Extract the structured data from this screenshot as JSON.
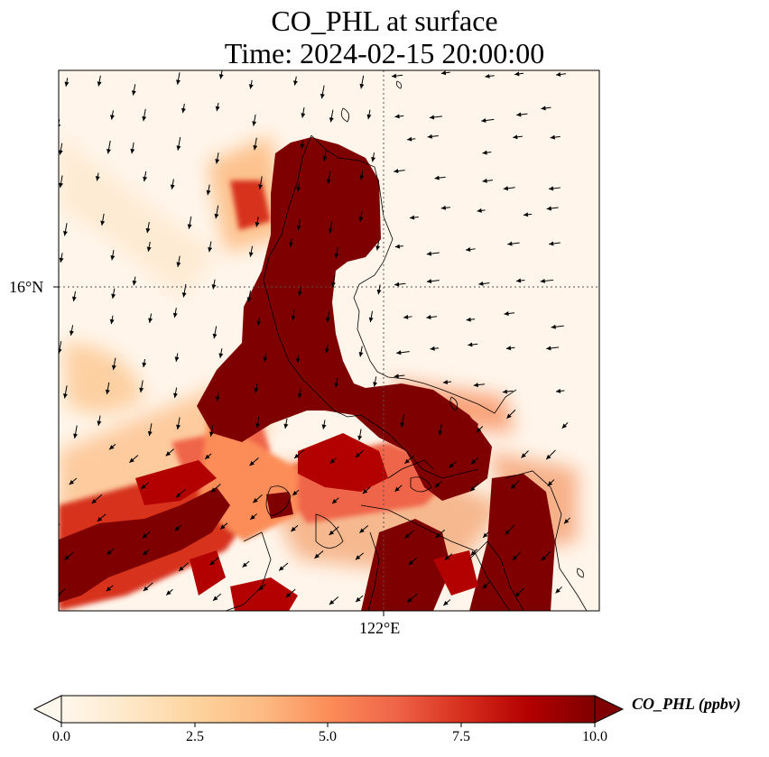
{
  "figure": {
    "title_line1": "CO_PHL at surface",
    "title_line2": "Time: 2024-02-15 20:00:00"
  },
  "axes": {
    "lat_tick_label": "16°N",
    "lon_tick_label": "122°E",
    "gridlines": "dotted"
  },
  "colorbar": {
    "label": "CO_PHL (ppbv)",
    "ticks": [
      "0.0",
      "2.5",
      "5.0",
      "7.5",
      "10.0"
    ],
    "tick_values": [
      0,
      2.5,
      5,
      7.5,
      10
    ],
    "range": [
      0,
      10
    ],
    "extend": "both",
    "colormap": "OrRd",
    "colors": [
      "#fff7ec",
      "#fee8c8",
      "#fdd49e",
      "#fdbb84",
      "#fc8d59",
      "#ef6548",
      "#d7301f",
      "#b30000",
      "#7f0000"
    ]
  },
  "map": {
    "vector_field": "wind arrows",
    "coastline_color": "#000000",
    "high_concentration_color": "#7f0000",
    "background_color": "#fff5ea"
  }
}
